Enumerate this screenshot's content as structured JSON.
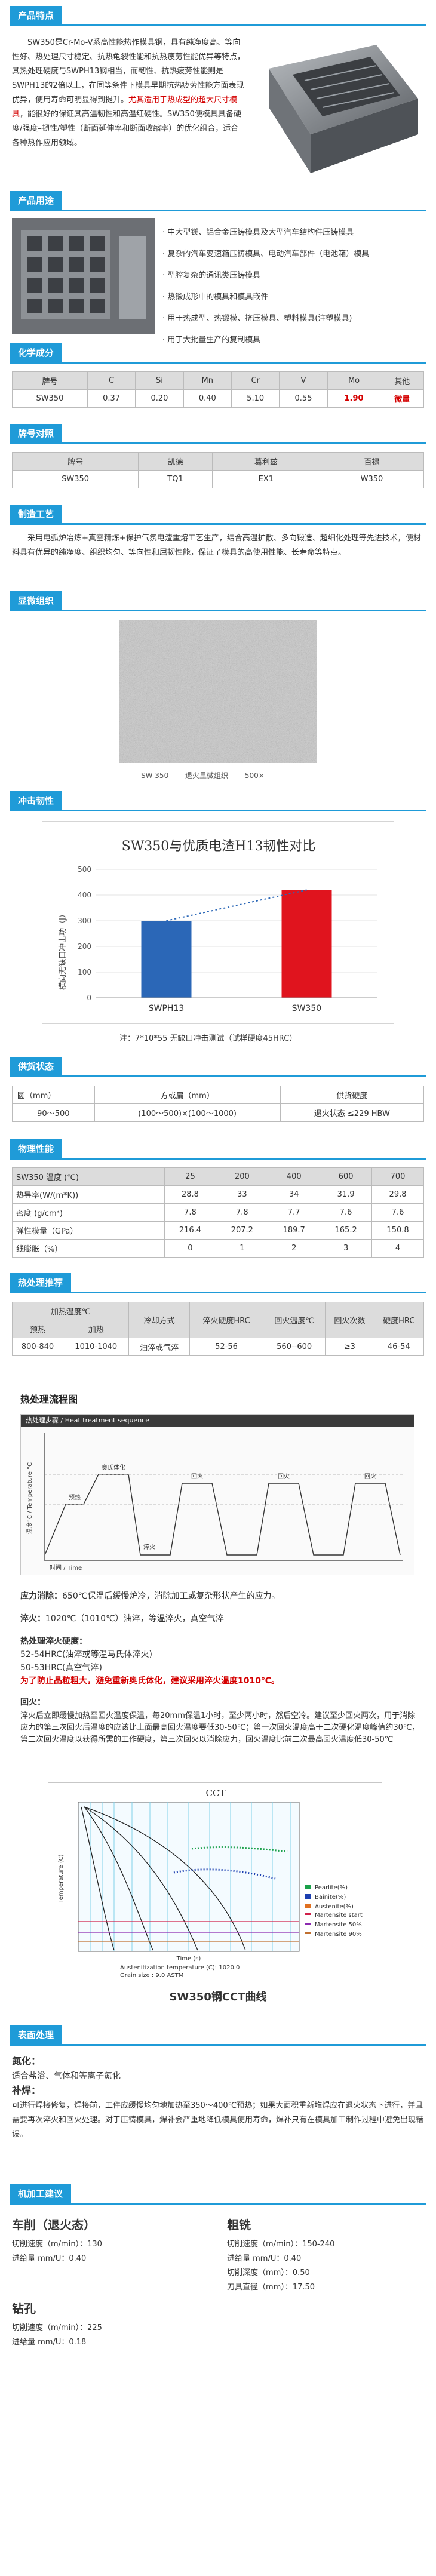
{
  "intro": {
    "title": "产品特点",
    "text_a": "SW350是Cr-Mo-V系高性能热作模具钢，具有纯净度高、等向性好、热处理尺寸稳定、抗热龟裂性能和抗热疲劳性能优异等特点，其热处理硬度与SWPH13钢相当，而韧性、抗热疲劳性能则是SWPH13的2倍以上，在同等条件下模具早期抗热疲劳性能方面表现优异，使用寿命可明显得到提升。",
    "text_red": "尤其适用于热成型的超大尺寸模具",
    "text_b": "，能很好的保证其高温韧性和高温红硬性。SW350使模具具备硬度/强度–韧性/塑性（断面延伸率和断面收缩率）的优化组合，适合各种热作应用领域。"
  },
  "usage": {
    "title": "产品用途",
    "items": [
      "中大型镁、铝合金压铸模具及大型汽车结构件压铸模具",
      "复杂的汽车变速箱压铸模具、电动汽车部件（电池箱）模具",
      "型腔复杂的通讯类压铸模具",
      "热锻成形中的模具和模具嵌件",
      "用于热成型、热锻模、挤压模具、塑料模具(注塑模具)",
      "用于大批量生产的复制模具"
    ]
  },
  "chem": {
    "title": "化学成分",
    "headers": [
      "牌号",
      "C",
      "Si",
      "Mn",
      "Cr",
      "V",
      "Mo",
      "其他"
    ],
    "row": [
      "SW350",
      "0.37",
      "0.20",
      "0.40",
      "5.10",
      "0.55",
      "1.90",
      "微量"
    ]
  },
  "grades": {
    "title": "牌号对照",
    "headers": [
      "牌号",
      "凯德",
      "葛利兹",
      "百禄"
    ],
    "row": [
      "SW350",
      "TQ1",
      "EX1",
      "W350"
    ]
  },
  "process": {
    "title": "制造工艺",
    "text": "采用电弧炉冶炼+真空精炼+保护气氛电渣重熔工艺生产，结合高温扩散、多向锻造、超细化处理等先进技术，使材料具有优异的纯净度、组织均匀、等向性和屈韧性能，保证了模具的高使用性能、长寿命等特点。"
  },
  "micro": {
    "title": "显微组织",
    "caption_1": "SW 350",
    "caption_2": "退火显微组织",
    "caption_3": "500×"
  },
  "impact": {
    "title": "冲击韧性",
    "note": "注：7*10*55 无缺口冲击测试（试样硬度45HRC）"
  },
  "chart_data": {
    "type": "bar",
    "title": "SW350与优质电渣H13韧性对比",
    "categories": [
      "SWPH13",
      "SW350"
    ],
    "values": [
      300,
      420
    ],
    "colors": [
      "#2b67b7",
      "#e0141e"
    ],
    "ylabel": "横向无缺口冲击功（J）",
    "ylim": [
      0,
      500
    ],
    "yticks": [
      "0",
      "100",
      "200",
      "300",
      "400",
      "500"
    ],
    "grid": true
  },
  "supply": {
    "title": "供货状态",
    "headers": [
      "圆（mm）",
      "方或扁（mm）",
      "供货硬度"
    ],
    "row": [
      "90～500",
      "(100～500)×(100～1000)",
      "退火状态 ≤229 HBW"
    ]
  },
  "physical": {
    "title": "物理性能",
    "headers": [
      "SW350  温度 (℃)",
      "25",
      "200",
      "400",
      "600",
      "700"
    ],
    "rows": [
      [
        "热导率(W/(m*K))",
        "28.8",
        "33",
        "34",
        "31.9",
        "29.8"
      ],
      [
        "密度 (g/cm³)",
        "7.8",
        "7.8",
        "7.7",
        "7.6",
        "7.6"
      ],
      [
        "弹性模量（GPa）",
        "216.4",
        "207.2",
        "189.7",
        "165.2",
        "150.8"
      ],
      [
        "线膨胀（%）",
        "0",
        "1",
        "2",
        "3",
        "4"
      ]
    ]
  },
  "heat_rec": {
    "title": "热处理推荐",
    "group_header": "加热温度℃",
    "headers": [
      "预热",
      "加热",
      "冷却方式",
      "淬火硬度HRC",
      "回火温度℃",
      "回火次数",
      "硬度HRC"
    ],
    "row": [
      "800-840",
      "1010-1040",
      "油淬或气淬",
      "52-56",
      "560--600",
      "≥3",
      "46-54"
    ]
  },
  "flow": {
    "title": "热处理流程图",
    "chart_title": "热处理步骤 / Heat treatment sequence",
    "y_label": "温度°C / Temperature °C",
    "x_label": "时间 / Time",
    "steps": [
      "预热",
      "奥氏体化",
      "淬火",
      "回火",
      "回火",
      "回火"
    ]
  },
  "stress": {
    "label": "应力消除：",
    "text": "650℃保温后缓慢炉冷，消除加工或复杂形状产生的应力。"
  },
  "quench": {
    "label": "淬火：",
    "text": "1020℃（1010℃）油淬，等温淬火，真空气淬",
    "hardness_label": "热处理淬火硬度：",
    "hardness_1": "52-54HRC(油淬或等温马氏体淬火)",
    "hardness_2": "50-53HRC(真空气淬)",
    "warn": "为了防止晶粒粗大，避免重新奥氏体化，建议采用淬火温度1010℃。"
  },
  "temper": {
    "label": "回火：",
    "text": "淬火后立即缓慢加热至回火温度保温，每20mm保温1小时，至少两小时，然后空冷。建议至少回火两次，用于消除应力的第三次回火后温度的应该比上面最高回火温度要低30-50℃；第一次回火温度高于二次硬化温度峰值约30℃，第二次回火温度以获得所需的工作硬度，第三次回火以消除应力，回火温度比前二次最高回火温度低30-50℃"
  },
  "cct": {
    "chart_title": "CCT",
    "caption": "SW350钢CCT曲线",
    "legend": [
      "Pearlite(%)",
      "Bainite(%)",
      "Austenite(%)",
      "Martensite start",
      "Martensite 50%",
      "Martensite 90%"
    ],
    "austenitization": "Austenitization temperature (C): 1020.0",
    "grain": "Grain size : 9.0 ASTM",
    "y_label": "Temperature (C)",
    "x_label": "Time (s)"
  },
  "surface": {
    "title": "表面处理",
    "nitriding_label": "氮化：",
    "nitriding_text": "适合盐浴、气体和等离子氮化",
    "weld_label": "补焊：",
    "weld_text": "可进行焊接修复，焊接前，工件应缓慢均匀地加热至350～400℃预热；如果大面积重新堆焊应在退火状态下进行，并且需要再次淬火和回火处理。对于压铸模具，焊补会严重地降低模具使用寿命，焊补只有在模具加工制作过程中避免出现错误。"
  },
  "machining": {
    "title": "机加工建议",
    "turning_title": "车削（退火态）",
    "turning": [
      "切削速度（m/min）：130",
      "进给量 mm/U：0.40"
    ],
    "milling_title": "粗铣",
    "milling": [
      "切削速度（m/min）：150-240",
      "进给量 mm/U：0.40",
      "切削深度（mm）：0.50",
      "刀具直径（mm）：17.50"
    ],
    "drilling_title": "钻孔",
    "drilling": [
      "切削速度（m/min）：225",
      "进给量 mm/U：0.18"
    ]
  },
  "colors": {
    "accent": "#1f9bd8",
    "red": "#d40000",
    "dark": "#2b2b2b"
  }
}
